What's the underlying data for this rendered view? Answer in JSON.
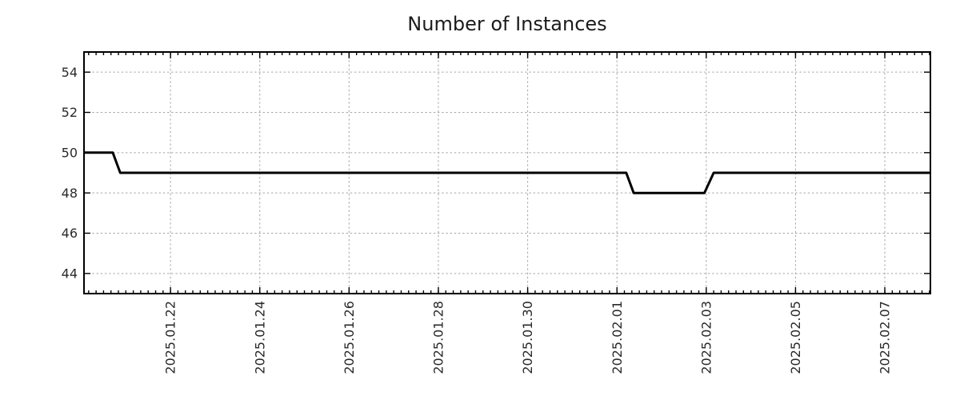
{
  "chart_data": {
    "type": "line",
    "title": "Number of Instances",
    "xlabel": "",
    "ylabel": "",
    "xlim": [
      "2025-01-20T01:30:00Z",
      "2025-02-08T00:30:00Z"
    ],
    "ylim": [
      43,
      55
    ],
    "y_ticks": [
      44,
      46,
      48,
      50,
      52,
      54
    ],
    "x_major_ticks": [
      {
        "value": "2025-01-22T00:00:00Z",
        "label": "2025.01.22"
      },
      {
        "value": "2025-01-24T00:00:00Z",
        "label": "2025.01.24"
      },
      {
        "value": "2025-01-26T00:00:00Z",
        "label": "2025.01.26"
      },
      {
        "value": "2025-01-28T00:00:00Z",
        "label": "2025.01.28"
      },
      {
        "value": "2025-01-30T00:00:00Z",
        "label": "2025.01.30"
      },
      {
        "value": "2025-02-01T00:00:00Z",
        "label": "2025.02.01"
      },
      {
        "value": "2025-02-03T00:00:00Z",
        "label": "2025.02.03"
      },
      {
        "value": "2025-02-05T00:00:00Z",
        "label": "2025.02.05"
      },
      {
        "value": "2025-02-07T00:00:00Z",
        "label": "2025.02.07"
      }
    ],
    "x_minor_tick_hours": 4,
    "grid": {
      "style": "dashed",
      "on": true
    },
    "legend": "none",
    "series": [
      {
        "name": "Number of Instances",
        "points": [
          [
            "2025-01-20T01:30:00Z",
            50
          ],
          [
            "2025-01-20T17:00:00Z",
            50
          ],
          [
            "2025-01-20T21:00:00Z",
            49
          ],
          [
            "2025-02-01T05:00:00Z",
            49
          ],
          [
            "2025-02-01T09:00:00Z",
            48
          ],
          [
            "2025-02-02T23:00:00Z",
            48
          ],
          [
            "2025-02-03T04:00:00Z",
            49
          ],
          [
            "2025-02-08T00:30:00Z",
            49
          ]
        ]
      }
    ],
    "colors": {
      "background": "#ffffff",
      "axis": "#000000",
      "grid": "#a6a6a6",
      "line": "#000000",
      "tick_text": "#2a2a2a",
      "title_text": "#1c1c1c"
    }
  }
}
